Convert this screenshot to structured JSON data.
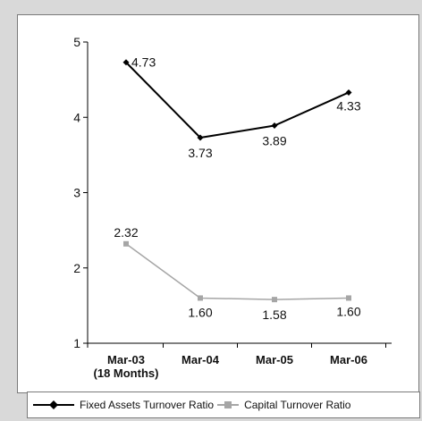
{
  "chart_data": {
    "type": "line",
    "categories": [
      "Mar-03\n(18 Months)",
      "Mar-04",
      "Mar-05",
      "Mar-06"
    ],
    "ylim": [
      1,
      5
    ],
    "yticks": [
      1,
      2,
      3,
      4,
      5
    ],
    "grid": false,
    "legend_position": "bottom",
    "series": [
      {
        "name": "Fixed Assets Turnover Ratio",
        "values": [
          4.73,
          3.73,
          3.89,
          4.33
        ],
        "labels": [
          "4.73",
          "3.73",
          "3.89",
          "4.33"
        ],
        "color": "#000000",
        "marker": "diamond"
      },
      {
        "name": "Capital Turnover Ratio",
        "values": [
          2.32,
          1.6,
          1.58,
          1.6
        ],
        "labels": [
          "2.32",
          "1.60",
          "1.58",
          "1.60"
        ],
        "color": "#a6a6a6",
        "marker": "square"
      }
    ]
  }
}
